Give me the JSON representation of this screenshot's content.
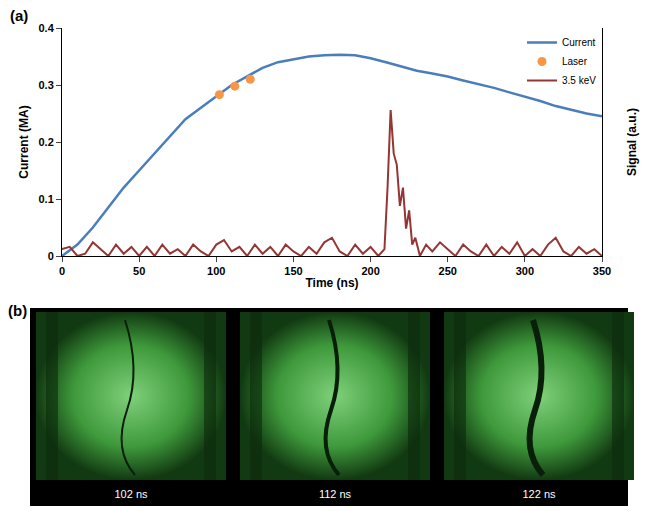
{
  "chart_data": {
    "type": "line",
    "title": "(a)",
    "x_label": "Time (ns)",
    "y_label": "Current (MA)",
    "y2_label": "Signal (a.u.)",
    "xlim": [
      0,
      350
    ],
    "xticks": [
      0,
      50,
      100,
      150,
      200,
      250,
      300,
      350
    ],
    "ylim": [
      0,
      0.4
    ],
    "yticks": [
      0,
      0.1,
      0.2,
      0.3,
      0.4
    ],
    "y2lim": [
      0,
      1
    ],
    "y2ticks": [],
    "grid": false,
    "legend": "top right",
    "series": [
      {
        "name": "Current",
        "type": "line",
        "color": "#4a7ebb",
        "line_style": "solid",
        "x": [
          0,
          10,
          20,
          30,
          40,
          50,
          60,
          70,
          80,
          90,
          100,
          110,
          120,
          130,
          140,
          150,
          160,
          170,
          180,
          190,
          200,
          210,
          220,
          230,
          240,
          250,
          260,
          270,
          280,
          290,
          300,
          310,
          320,
          330,
          340,
          350
        ],
        "values": [
          0,
          0.02,
          0.05,
          0.085,
          0.12,
          0.15,
          0.18,
          0.21,
          0.24,
          0.26,
          0.28,
          0.3,
          0.315,
          0.33,
          0.34,
          0.345,
          0.35,
          0.352,
          0.353,
          0.352,
          0.347,
          0.34,
          0.333,
          0.325,
          0.32,
          0.315,
          0.308,
          0.302,
          0.295,
          0.287,
          0.28,
          0.272,
          0.263,
          0.256,
          0.25,
          0.245
        ]
      },
      {
        "name": "Laser",
        "type": "scatter",
        "color": "#f79646",
        "marker": "circle",
        "x": [
          102,
          112,
          122
        ],
        "values": [
          0.283,
          0.298,
          0.31
        ]
      },
      {
        "name": "3.5 keV",
        "type": "line",
        "color": "#943634",
        "line_style": "solid",
        "axis": "y2",
        "x": [
          0,
          5,
          10,
          15,
          20,
          25,
          30,
          35,
          40,
          45,
          50,
          55,
          60,
          65,
          70,
          75,
          80,
          85,
          90,
          95,
          100,
          105,
          110,
          115,
          120,
          125,
          130,
          135,
          140,
          145,
          150,
          155,
          160,
          165,
          170,
          175,
          180,
          185,
          190,
          195,
          200,
          205,
          209,
          211,
          213,
          215,
          217,
          219,
          221,
          223,
          225,
          227,
          229,
          232,
          236,
          240,
          245,
          250,
          255,
          260,
          265,
          270,
          275,
          280,
          285,
          290,
          295,
          300,
          305,
          310,
          315,
          320,
          325,
          330,
          335,
          340,
          345,
          350
        ],
        "values": [
          0.03,
          0.04,
          0,
          0.01,
          0.06,
          0.03,
          0,
          0.05,
          0.01,
          0.04,
          0,
          0.04,
          0,
          0.05,
          0.01,
          0.03,
          0,
          0.05,
          0.02,
          0,
          0.05,
          0.07,
          0.02,
          0.04,
          0,
          0.05,
          0.01,
          0.04,
          0,
          0.05,
          0.02,
          0,
          0.04,
          0.01,
          0.06,
          0.08,
          0.02,
          0,
          0.05,
          0.01,
          0.04,
          0,
          0.03,
          0.3,
          0.64,
          0.45,
          0.4,
          0.22,
          0.3,
          0.12,
          0.2,
          0.05,
          0.08,
          0,
          0.05,
          0.02,
          0.06,
          0.03,
          0,
          0.05,
          0.02,
          0,
          0.05,
          0,
          0.04,
          0.01,
          0.06,
          0,
          0.03,
          0,
          0.05,
          0.08,
          0.02,
          0,
          0.04,
          0.01,
          0.03,
          0
        ]
      }
    ]
  },
  "images": {
    "label": "(b)",
    "captions": [
      "102 ns",
      "112 ns",
      "122 ns"
    ]
  }
}
